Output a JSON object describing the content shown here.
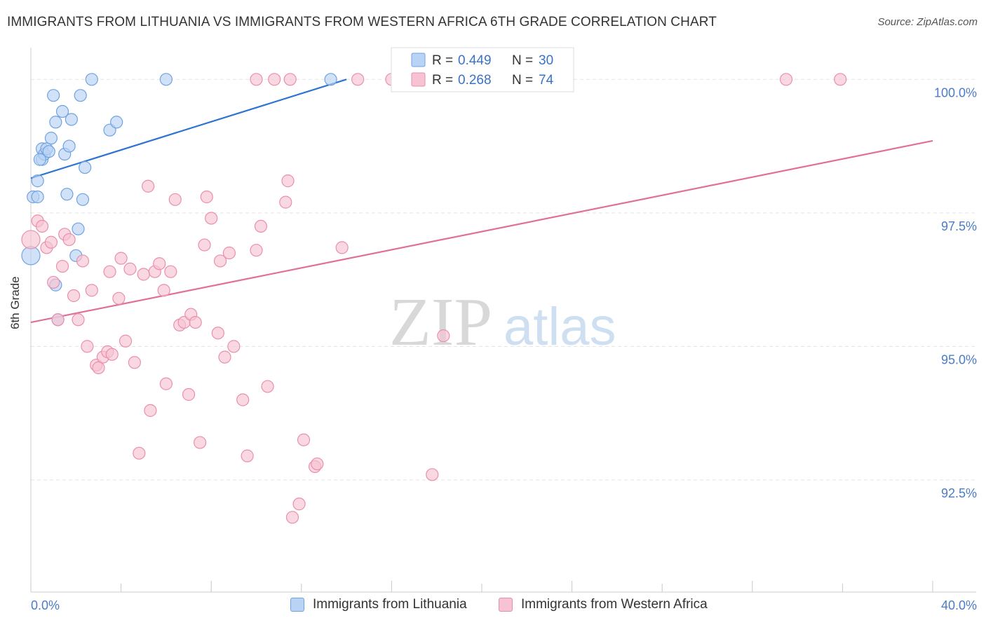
{
  "title": "IMMIGRANTS FROM LITHUANIA VS IMMIGRANTS FROM WESTERN AFRICA 6TH GRADE CORRELATION CHART",
  "source": "Source: ZipAtlas.com",
  "watermark": {
    "zip": "ZIP",
    "atlas": "atlas"
  },
  "colors": {
    "blue_fill": "#b8d3f5",
    "blue_stroke": "#6fa3e0",
    "blue_line": "#2f74d0",
    "pink_fill": "#f7c3d3",
    "pink_stroke": "#e98fae",
    "pink_line": "#e0709a",
    "tick_label": "#4a7cc9",
    "grid": "#e3e3e3"
  },
  "legend_top": [
    {
      "r_label": "R =",
      "r_value": "0.449",
      "n_label": "N =",
      "n_value": "30",
      "series": "blue"
    },
    {
      "r_label": "R =",
      "r_value": "0.268",
      "n_label": "N =",
      "n_value": "74",
      "series": "pink"
    }
  ],
  "chart_data": {
    "type": "scatter",
    "title": "IMMIGRANTS FROM LITHUANIA VS IMMIGRANTS FROM WESTERN AFRICA 6TH GRADE CORRELATION CHART",
    "xlabel": "",
    "ylabel": "6th Grade",
    "xlim": [
      0,
      40
    ],
    "ylim": [
      90.4,
      100.45
    ],
    "x_tick_labels": [
      "0.0%",
      "40.0%"
    ],
    "y_ticks": [
      100.0,
      97.5,
      95.0,
      92.5
    ],
    "y_tick_labels": [
      "100.0%",
      "97.5%",
      "95.0%",
      "92.5%"
    ],
    "grid": true,
    "legend_position": "top-center and bottom",
    "series": [
      {
        "name": "Immigrants from Lithuania",
        "color": "blue",
        "r": 0.449,
        "n": 30,
        "trend": {
          "x": [
            0.0,
            14.0
          ],
          "y": [
            98.15,
            100.0
          ]
        },
        "points": [
          [
            0.0,
            96.7
          ],
          [
            0.1,
            97.8
          ],
          [
            0.3,
            97.8
          ],
          [
            0.3,
            98.1
          ],
          [
            0.5,
            98.5
          ],
          [
            0.5,
            98.7
          ],
          [
            0.6,
            98.6
          ],
          [
            0.7,
            98.7
          ],
          [
            0.9,
            98.9
          ],
          [
            1.0,
            99.7
          ],
          [
            1.1,
            99.2
          ],
          [
            1.4,
            99.4
          ],
          [
            1.5,
            98.6
          ],
          [
            1.6,
            97.85
          ],
          [
            1.7,
            98.75
          ],
          [
            1.8,
            99.25
          ],
          [
            2.0,
            96.7
          ],
          [
            2.1,
            97.2
          ],
          [
            2.2,
            99.7
          ],
          [
            2.3,
            97.75
          ],
          [
            2.4,
            98.35
          ],
          [
            2.7,
            100.0
          ],
          [
            3.5,
            99.05
          ],
          [
            3.8,
            99.2
          ],
          [
            6.0,
            100.0
          ],
          [
            13.3,
            100.0
          ],
          [
            1.2,
            95.5
          ],
          [
            1.1,
            96.15
          ],
          [
            0.8,
            98.65
          ],
          [
            0.4,
            98.5
          ]
        ]
      },
      {
        "name": "Immigrants from Western Africa",
        "color": "pink",
        "r": 0.268,
        "n": 74,
        "trend": {
          "x": [
            0.0,
            40.0
          ],
          "y": [
            95.45,
            98.85
          ]
        },
        "points": [
          [
            0.0,
            97.0
          ],
          [
            0.3,
            97.35
          ],
          [
            0.5,
            97.25
          ],
          [
            0.7,
            96.85
          ],
          [
            0.9,
            96.95
          ],
          [
            1.0,
            96.2
          ],
          [
            1.2,
            95.5
          ],
          [
            1.4,
            96.5
          ],
          [
            1.5,
            97.1
          ],
          [
            1.7,
            97.0
          ],
          [
            1.9,
            95.95
          ],
          [
            2.1,
            95.5
          ],
          [
            2.3,
            96.6
          ],
          [
            2.5,
            95.0
          ],
          [
            2.7,
            96.05
          ],
          [
            2.9,
            94.65
          ],
          [
            3.0,
            94.6
          ],
          [
            3.2,
            94.8
          ],
          [
            3.4,
            94.9
          ],
          [
            3.5,
            96.4
          ],
          [
            3.6,
            94.85
          ],
          [
            3.9,
            95.9
          ],
          [
            4.0,
            96.65
          ],
          [
            4.2,
            95.1
          ],
          [
            4.4,
            96.45
          ],
          [
            4.6,
            94.7
          ],
          [
            4.8,
            93.0
          ],
          [
            5.0,
            96.35
          ],
          [
            5.2,
            98.0
          ],
          [
            5.3,
            93.8
          ],
          [
            5.5,
            96.4
          ],
          [
            5.7,
            96.55
          ],
          [
            5.9,
            96.05
          ],
          [
            6.0,
            94.3
          ],
          [
            6.2,
            96.4
          ],
          [
            6.4,
            97.75
          ],
          [
            6.6,
            95.4
          ],
          [
            6.8,
            95.45
          ],
          [
            7.0,
            94.1
          ],
          [
            7.1,
            95.6
          ],
          [
            7.3,
            95.45
          ],
          [
            7.5,
            93.2
          ],
          [
            7.7,
            96.9
          ],
          [
            7.8,
            97.8
          ],
          [
            8.0,
            97.4
          ],
          [
            8.3,
            95.25
          ],
          [
            8.4,
            96.6
          ],
          [
            8.6,
            94.8
          ],
          [
            8.8,
            96.75
          ],
          [
            9.0,
            95.0
          ],
          [
            9.4,
            94.0
          ],
          [
            9.6,
            92.95
          ],
          [
            10.0,
            96.8
          ],
          [
            10.2,
            97.25
          ],
          [
            10.5,
            94.25
          ],
          [
            11.3,
            97.7
          ],
          [
            11.4,
            98.1
          ],
          [
            11.6,
            91.8
          ],
          [
            11.9,
            92.05
          ],
          [
            12.1,
            93.25
          ],
          [
            12.6,
            92.75
          ],
          [
            12.7,
            92.8
          ],
          [
            13.8,
            96.85
          ],
          [
            14.5,
            100.0
          ],
          [
            16.0,
            100.0
          ],
          [
            17.8,
            92.6
          ],
          [
            18.3,
            95.2
          ],
          [
            10.0,
            100.0
          ],
          [
            10.8,
            100.0
          ],
          [
            11.5,
            100.0
          ],
          [
            16.6,
            100.0
          ],
          [
            20.0,
            100.0
          ],
          [
            33.5,
            100.0
          ],
          [
            35.9,
            100.0
          ]
        ]
      }
    ]
  }
}
